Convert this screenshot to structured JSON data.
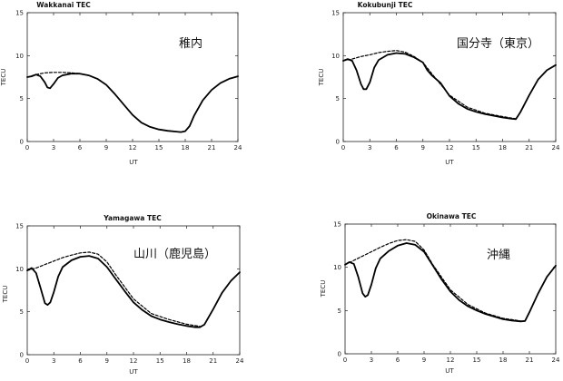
{
  "chart_data": [
    {
      "type": "line",
      "title": "Wakkanai  TEC",
      "annotation": "稚内",
      "xlabel": "UT",
      "ylabel": "TECU",
      "xlim": [
        0,
        24
      ],
      "ylim": [
        0,
        15
      ],
      "xticks": [
        0,
        3,
        6,
        9,
        12,
        15,
        18,
        21,
        24
      ],
      "yticks": [
        0,
        5,
        10,
        15
      ],
      "grid": false,
      "series": [
        {
          "style": "solid",
          "x": [
            0,
            0.5,
            1,
            1.5,
            2,
            2.3,
            2.6,
            3,
            3.5,
            4,
            5,
            6,
            7,
            8,
            9,
            10,
            11,
            12,
            13,
            14,
            15,
            16,
            17,
            17.5,
            18,
            18.5,
            19,
            20,
            21,
            22,
            23,
            24
          ],
          "y": [
            7.5,
            7.6,
            7.8,
            7.6,
            6.9,
            6.3,
            6.2,
            6.7,
            7.4,
            7.7,
            7.9,
            7.9,
            7.7,
            7.3,
            6.6,
            5.5,
            4.3,
            3.1,
            2.2,
            1.7,
            1.4,
            1.25,
            1.15,
            1.1,
            1.2,
            1.8,
            3.0,
            4.8,
            6.0,
            6.8,
            7.3,
            7.6
          ]
        },
        {
          "style": "dashed",
          "x": [
            0,
            1,
            2,
            3,
            4,
            5,
            6
          ],
          "y": [
            7.5,
            7.8,
            8.0,
            8.05,
            8.05,
            8.0,
            7.9
          ]
        }
      ]
    },
    {
      "type": "line",
      "title": "Kokubunji  TEC",
      "annotation": "国分寺（東京）",
      "xlabel": "UT",
      "ylabel": "TECU",
      "xlim": [
        0,
        24
      ],
      "ylim": [
        0,
        15
      ],
      "xticks": [
        0,
        3,
        6,
        9,
        12,
        15,
        18,
        21,
        24
      ],
      "yticks": [
        0,
        5,
        10,
        15
      ],
      "grid": false,
      "series": [
        {
          "style": "solid",
          "x": [
            0,
            0.5,
            1,
            1.5,
            2,
            2.3,
            2.6,
            3,
            3.5,
            4,
            5,
            6,
            7,
            8,
            9,
            9.5,
            10,
            11,
            12,
            13,
            14,
            15,
            16,
            17,
            18,
            19,
            19.5,
            20,
            21,
            22,
            23,
            24
          ],
          "y": [
            9.4,
            9.6,
            9.4,
            8.3,
            6.7,
            6.1,
            6.1,
            6.9,
            8.6,
            9.5,
            10.1,
            10.3,
            10.2,
            9.8,
            9.2,
            8.3,
            7.7,
            6.8,
            5.3,
            4.4,
            3.8,
            3.45,
            3.2,
            3.0,
            2.8,
            2.65,
            2.6,
            3.4,
            5.4,
            7.2,
            8.3,
            8.9
          ]
        },
        {
          "style": "dashed",
          "x": [
            0,
            1,
            2,
            3,
            4,
            5,
            6,
            7,
            8,
            9,
            10,
            12,
            14,
            16,
            18,
            19.5
          ],
          "y": [
            9.4,
            9.6,
            9.9,
            10.1,
            10.35,
            10.5,
            10.6,
            10.4,
            9.9,
            9.2,
            7.9,
            5.4,
            4.0,
            3.3,
            2.9,
            2.65
          ]
        }
      ]
    },
    {
      "type": "line",
      "title": "Yamagawa  TEC",
      "annotation": "山川（鹿児島）",
      "xlabel": "UT",
      "ylabel": "TECU",
      "xlim": [
        0,
        24
      ],
      "ylim": [
        0,
        15
      ],
      "xticks": [
        0,
        3,
        6,
        9,
        12,
        15,
        18,
        21,
        24
      ],
      "yticks": [
        0,
        5,
        10,
        15
      ],
      "grid": false,
      "series": [
        {
          "style": "solid",
          "x": [
            0,
            0.5,
            1,
            1.5,
            2,
            2.3,
            2.6,
            3,
            3.5,
            4,
            5,
            6,
            7,
            8,
            9,
            10,
            11,
            12,
            13,
            14,
            15,
            16,
            17,
            18,
            19,
            19.5,
            20,
            21,
            22,
            23,
            24
          ],
          "y": [
            9.8,
            10.1,
            9.5,
            7.8,
            6.0,
            5.8,
            6.1,
            7.3,
            9.1,
            10.2,
            11.0,
            11.4,
            11.5,
            11.2,
            10.2,
            8.8,
            7.4,
            6.1,
            5.2,
            4.5,
            4.1,
            3.8,
            3.55,
            3.35,
            3.2,
            3.2,
            3.5,
            5.3,
            7.2,
            8.6,
            9.6
          ]
        },
        {
          "style": "dashed",
          "x": [
            0,
            1,
            2,
            3,
            4,
            5,
            6,
            7,
            8,
            9,
            10,
            12,
            14,
            16,
            18,
            19.5
          ],
          "y": [
            9.8,
            10.1,
            10.5,
            10.9,
            11.3,
            11.6,
            11.85,
            11.95,
            11.7,
            10.8,
            9.3,
            6.5,
            4.8,
            4.1,
            3.55,
            3.3
          ]
        }
      ]
    },
    {
      "type": "line",
      "title": "Okinawa  TEC",
      "annotation": "沖縄",
      "xlabel": "UT",
      "ylabel": "TECU",
      "xlim": [
        0,
        24
      ],
      "ylim": [
        0,
        15
      ],
      "xticks": [
        0,
        3,
        6,
        9,
        12,
        15,
        18,
        21,
        24
      ],
      "yticks": [
        0,
        5,
        10,
        15
      ],
      "grid": false,
      "series": [
        {
          "style": "solid",
          "x": [
            0,
            0.5,
            1,
            1.5,
            2,
            2.3,
            2.6,
            3,
            3.5,
            4,
            5,
            6,
            7,
            8,
            9,
            10,
            11,
            12,
            13,
            14,
            15,
            16,
            17,
            18,
            19,
            20,
            20.5,
            21,
            22,
            23,
            24
          ],
          "y": [
            10.3,
            10.6,
            10.4,
            8.9,
            7.0,
            6.6,
            6.8,
            8.0,
            9.9,
            11.0,
            11.9,
            12.5,
            12.8,
            12.6,
            11.8,
            10.2,
            8.6,
            7.2,
            6.2,
            5.5,
            5.0,
            4.6,
            4.3,
            4.0,
            3.85,
            3.75,
            3.8,
            4.8,
            7.0,
            8.9,
            10.2
          ]
        },
        {
          "style": "dashed",
          "x": [
            0,
            1,
            2,
            3,
            4,
            5,
            6,
            7,
            8,
            9,
            10,
            12,
            14,
            16,
            18,
            20
          ],
          "y": [
            10.3,
            10.8,
            11.3,
            11.8,
            12.3,
            12.75,
            13.1,
            13.2,
            13.0,
            12.0,
            10.3,
            7.4,
            5.7,
            4.7,
            4.1,
            3.8
          ]
        }
      ]
    }
  ]
}
